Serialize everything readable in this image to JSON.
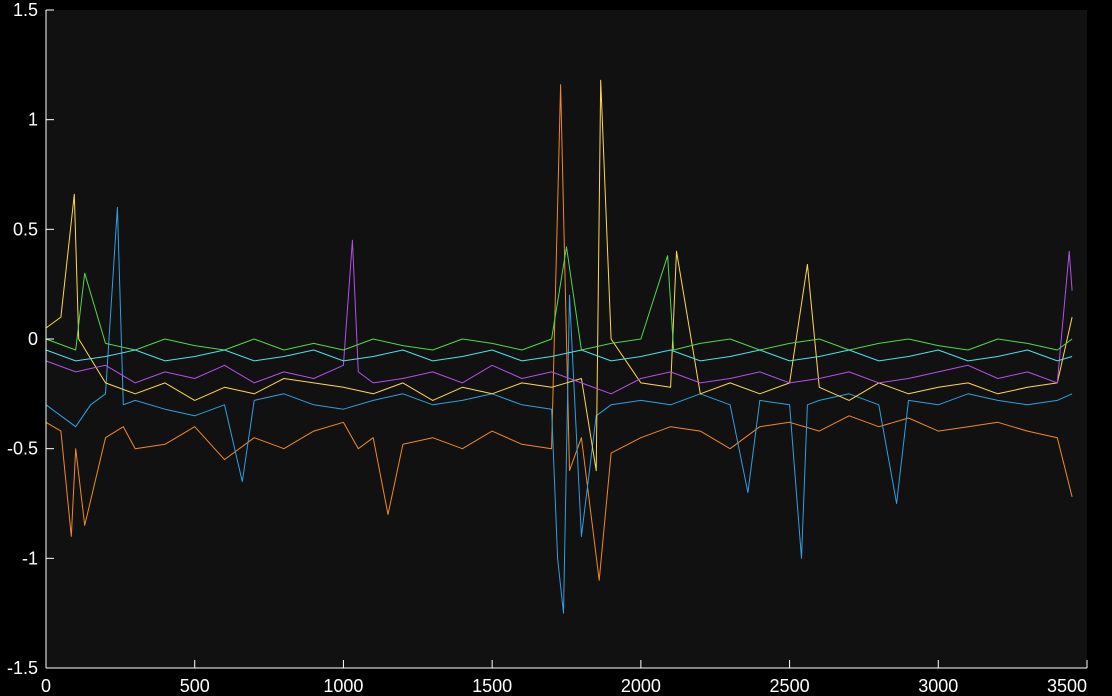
{
  "chart_data": {
    "type": "line",
    "title": "",
    "xlabel": "",
    "ylabel": "",
    "xlim": [
      0,
      3500
    ],
    "ylim": [
      -1.5,
      1.5
    ],
    "xticks": [
      0,
      500,
      1000,
      1500,
      2000,
      2500,
      3000,
      3500
    ],
    "yticks": [
      -1.5,
      -1,
      -0.5,
      0,
      0.5,
      1,
      1.5
    ],
    "xtick_labels": [
      "0",
      "500",
      "1000",
      "1500",
      "2000",
      "2500",
      "3000",
      "3500"
    ],
    "ytick_labels": [
      "-1.5",
      "-1",
      "-0.5",
      "0",
      "0.5",
      "1",
      "1.5"
    ],
    "grid": false,
    "legend": "none",
    "background": "#111111",
    "series": [
      {
        "color": "#f08a24",
        "x": [
          0,
          50,
          85,
          100,
          130,
          200,
          260,
          300,
          400,
          500,
          600,
          700,
          800,
          900,
          1000,
          1050,
          1100,
          1150,
          1200,
          1300,
          1400,
          1500,
          1600,
          1700,
          1730,
          1760,
          1800,
          1860,
          1900,
          2000,
          2100,
          2200,
          2300,
          2400,
          2500,
          2600,
          2700,
          2800,
          2900,
          3000,
          3100,
          3200,
          3300,
          3400,
          3450
        ],
        "y": [
          -0.38,
          -0.42,
          -0.9,
          -0.5,
          -0.85,
          -0.45,
          -0.4,
          -0.5,
          -0.48,
          -0.4,
          -0.55,
          -0.45,
          -0.5,
          -0.42,
          -0.38,
          -0.5,
          -0.45,
          -0.8,
          -0.48,
          -0.45,
          -0.5,
          -0.42,
          -0.48,
          -0.5,
          1.16,
          -0.6,
          -0.45,
          -1.1,
          -0.52,
          -0.45,
          -0.4,
          -0.42,
          -0.5,
          -0.4,
          -0.38,
          -0.42,
          -0.35,
          -0.4,
          -0.36,
          -0.42,
          -0.4,
          -0.38,
          -0.42,
          -0.45,
          -0.72
        ]
      },
      {
        "color": "#2f9fe0",
        "x": [
          0,
          50,
          100,
          150,
          200,
          240,
          260,
          300,
          400,
          500,
          600,
          660,
          700,
          800,
          900,
          1000,
          1100,
          1200,
          1300,
          1400,
          1500,
          1600,
          1700,
          1720,
          1740,
          1760,
          1800,
          1850,
          1900,
          2000,
          2100,
          2200,
          2300,
          2360,
          2400,
          2500,
          2540,
          2560,
          2600,
          2700,
          2800,
          2860,
          2900,
          3000,
          3100,
          3200,
          3300,
          3400,
          3450
        ],
        "y": [
          -0.3,
          -0.35,
          -0.4,
          -0.3,
          -0.25,
          0.6,
          -0.3,
          -0.28,
          -0.32,
          -0.35,
          -0.3,
          -0.65,
          -0.28,
          -0.25,
          -0.3,
          -0.32,
          -0.28,
          -0.25,
          -0.3,
          -0.28,
          -0.25,
          -0.3,
          -0.32,
          -1.0,
          -1.25,
          0.2,
          -0.9,
          -0.35,
          -0.3,
          -0.28,
          -0.3,
          -0.25,
          -0.3,
          -0.7,
          -0.28,
          -0.3,
          -1.0,
          -0.3,
          -0.28,
          -0.25,
          -0.3,
          -0.75,
          -0.28,
          -0.3,
          -0.25,
          -0.28,
          -0.3,
          -0.28,
          -0.25
        ]
      },
      {
        "color": "#ffd84a",
        "x": [
          0,
          50,
          95,
          110,
          200,
          300,
          400,
          500,
          600,
          700,
          800,
          900,
          1000,
          1100,
          1200,
          1300,
          1400,
          1500,
          1600,
          1700,
          1800,
          1850,
          1865,
          1900,
          2000,
          2100,
          2120,
          2200,
          2300,
          2400,
          2500,
          2560,
          2600,
          2700,
          2800,
          2900,
          3000,
          3100,
          3200,
          3300,
          3400,
          3450
        ],
        "y": [
          0.05,
          0.1,
          0.66,
          0.0,
          -0.2,
          -0.25,
          -0.2,
          -0.28,
          -0.22,
          -0.25,
          -0.18,
          -0.2,
          -0.22,
          -0.25,
          -0.2,
          -0.28,
          -0.22,
          -0.25,
          -0.2,
          -0.22,
          -0.18,
          -0.6,
          1.18,
          0.0,
          -0.2,
          -0.22,
          0.4,
          -0.25,
          -0.2,
          -0.25,
          -0.2,
          0.34,
          -0.22,
          -0.28,
          -0.2,
          -0.25,
          -0.22,
          -0.2,
          -0.25,
          -0.22,
          -0.2,
          0.1
        ]
      },
      {
        "color": "#b450e6",
        "x": [
          0,
          100,
          200,
          300,
          400,
          500,
          600,
          700,
          800,
          900,
          1000,
          1030,
          1050,
          1100,
          1200,
          1300,
          1400,
          1500,
          1600,
          1700,
          1800,
          1900,
          2000,
          2100,
          2200,
          2300,
          2400,
          2500,
          2600,
          2700,
          2800,
          2900,
          3000,
          3100,
          3200,
          3300,
          3400,
          3440,
          3450
        ],
        "y": [
          -0.1,
          -0.15,
          -0.12,
          -0.2,
          -0.15,
          -0.18,
          -0.12,
          -0.2,
          -0.15,
          -0.18,
          -0.12,
          0.45,
          -0.15,
          -0.2,
          -0.18,
          -0.15,
          -0.2,
          -0.12,
          -0.18,
          -0.15,
          -0.2,
          -0.25,
          -0.18,
          -0.15,
          -0.2,
          -0.18,
          -0.15,
          -0.2,
          -0.18,
          -0.15,
          -0.2,
          -0.18,
          -0.15,
          -0.12,
          -0.18,
          -0.15,
          -0.2,
          0.4,
          0.22
        ]
      },
      {
        "color": "#4fd84a",
        "x": [
          0,
          100,
          130,
          200,
          300,
          400,
          500,
          600,
          700,
          800,
          900,
          1000,
          1100,
          1200,
          1300,
          1400,
          1500,
          1600,
          1700,
          1750,
          1800,
          1900,
          2000,
          2090,
          2110,
          2200,
          2300,
          2400,
          2500,
          2600,
          2700,
          2800,
          2900,
          3000,
          3100,
          3200,
          3300,
          3400,
          3450
        ],
        "y": [
          0.0,
          -0.05,
          0.3,
          -0.02,
          -0.05,
          0.0,
          -0.03,
          -0.05,
          0.0,
          -0.05,
          -0.02,
          -0.05,
          0.0,
          -0.03,
          -0.05,
          0.0,
          -0.02,
          -0.05,
          0.0,
          0.42,
          -0.05,
          -0.02,
          0.0,
          0.38,
          -0.05,
          -0.02,
          0.0,
          -0.05,
          -0.02,
          0.0,
          -0.05,
          -0.02,
          0.0,
          -0.03,
          -0.05,
          0.0,
          -0.02,
          -0.05,
          0.0
        ]
      },
      {
        "color": "#4fe0e8",
        "x": [
          0,
          100,
          200,
          300,
          400,
          500,
          600,
          700,
          800,
          900,
          1000,
          1100,
          1200,
          1300,
          1400,
          1500,
          1600,
          1700,
          1800,
          1900,
          2000,
          2100,
          2200,
          2300,
          2400,
          2500,
          2600,
          2700,
          2800,
          2900,
          3000,
          3100,
          3200,
          3300,
          3400,
          3450
        ],
        "y": [
          -0.05,
          -0.1,
          -0.08,
          -0.05,
          -0.1,
          -0.08,
          -0.05,
          -0.1,
          -0.08,
          -0.05,
          -0.1,
          -0.08,
          -0.05,
          -0.1,
          -0.08,
          -0.05,
          -0.1,
          -0.08,
          -0.05,
          -0.1,
          -0.08,
          -0.05,
          -0.1,
          -0.08,
          -0.05,
          -0.1,
          -0.08,
          -0.05,
          -0.1,
          -0.08,
          -0.05,
          -0.1,
          -0.08,
          -0.05,
          -0.1,
          -0.08
        ]
      }
    ]
  }
}
